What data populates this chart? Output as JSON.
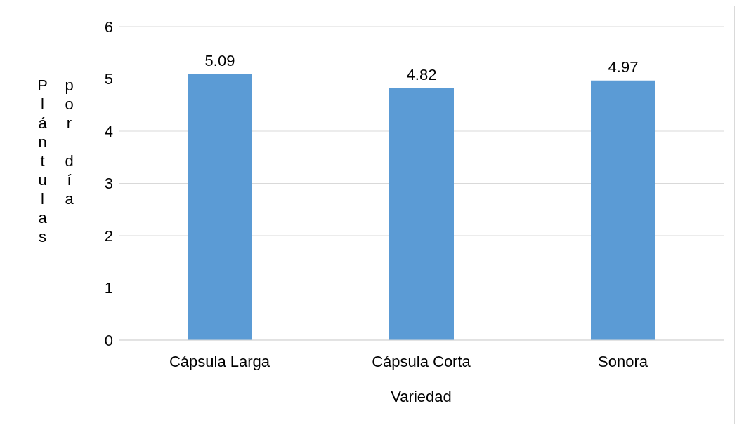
{
  "chart_data": {
    "type": "bar",
    "xlabel": "Variedad",
    "ylabel": "Plántulas por día",
    "categories": [
      "Cápsula Larga",
      "Cápsula Corta",
      "Sonora"
    ],
    "values": [
      5.09,
      4.82,
      4.97
    ],
    "color": "#5b9bd5",
    "ylim": [
      0,
      6
    ],
    "yticks": [
      0,
      1,
      2,
      3,
      4,
      5,
      6
    ],
    "grid": "y",
    "data_labels": true,
    "legend": false
  }
}
